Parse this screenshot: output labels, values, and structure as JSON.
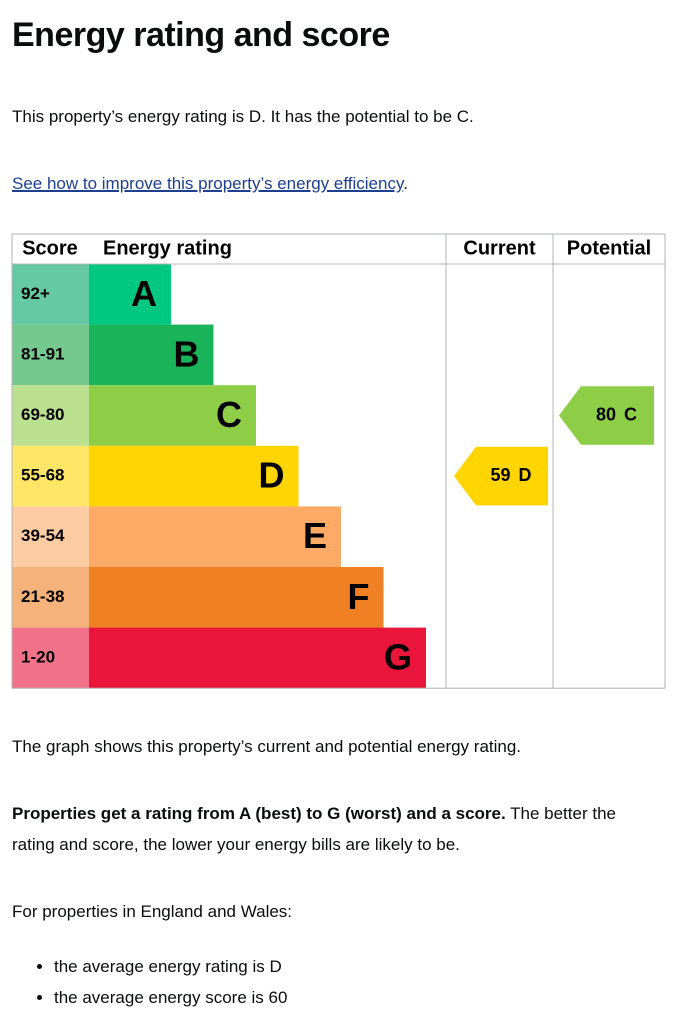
{
  "header": {
    "title": "Energy rating and score"
  },
  "intro": "This property’s energy rating is D. It has the potential to be C.",
  "link": {
    "text": "See how to improve this property’s energy efficiency",
    "after": "."
  },
  "chart": {
    "columns": [
      "Score",
      "Energy rating",
      "Current",
      "Potential"
    ],
    "bands": [
      {
        "range": "92+",
        "letter": "A",
        "color": "#00c781",
        "range_color": "#64c9a4"
      },
      {
        "range": "81-91",
        "letter": "B",
        "color": "#19b459",
        "range_color": "#75c98f"
      },
      {
        "range": "69-80",
        "letter": "C",
        "color": "#8dce46",
        "range_color": "#bbe08f"
      },
      {
        "range": "55-68",
        "letter": "D",
        "color": "#ffd500",
        "range_color": "#ffe666"
      },
      {
        "range": "39-54",
        "letter": "E",
        "color": "#fcaa65",
        "range_color": "#fdcca3"
      },
      {
        "range": "21-38",
        "letter": "F",
        "color": "#ef8023",
        "range_color": "#f5b37b"
      },
      {
        "range": "1-20",
        "letter": "G",
        "color": "#e9153b",
        "range_color": "#f27389"
      }
    ],
    "current": {
      "score": 59,
      "rating": "D"
    },
    "potential": {
      "score": 80,
      "rating": "C"
    }
  },
  "graph_note": "The graph shows this property’s current and potential energy rating.",
  "explanation": {
    "bold": "Properties get a rating from A (best) to G (worst) and a score.",
    "rest": " The better the rating and score, the lower your energy bills are likely to be."
  },
  "average_intro": "For properties in England and Wales:",
  "bullets": [
    "the average energy rating is D",
    "the average energy score is 60"
  ]
}
